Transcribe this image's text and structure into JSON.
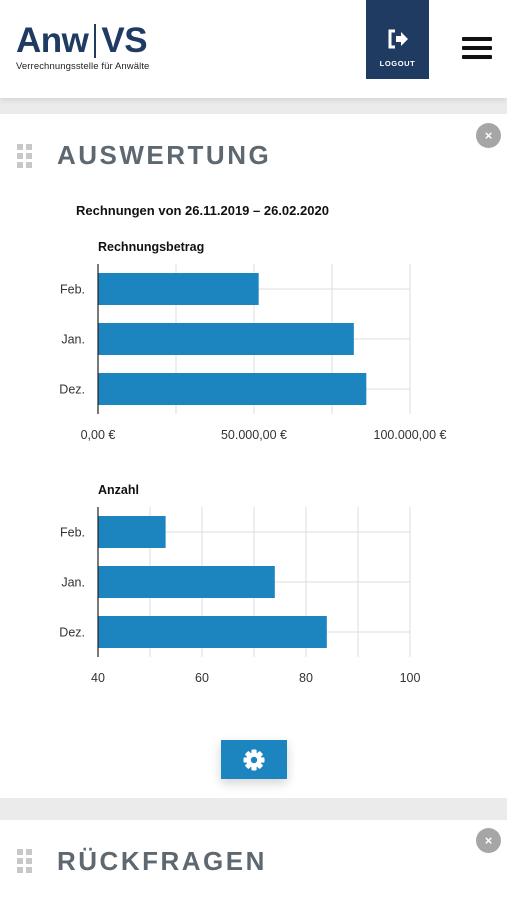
{
  "header": {
    "logo_left": "Anw",
    "logo_right": "VS",
    "logo_subtitle": "Verrechnungsstelle für Anwälte",
    "logout_label": "LOGOUT",
    "menu_icon": "hamburger-icon",
    "logout_icon": "sign-out-icon"
  },
  "cards": [
    {
      "title": "AUSWERTUNG",
      "close": "×"
    },
    {
      "title": "RÜCKFRAGEN",
      "close": "×"
    }
  ],
  "evaluation": {
    "range_title": "Rechnungen von 26.11.2019 – 26.02.2020",
    "settings_icon": "gear-icon"
  },
  "colors": {
    "bar": "#1c84bf",
    "brand": "#1f3b62",
    "grid": "#dddddd"
  },
  "chart_data": [
    {
      "type": "bar",
      "orientation": "horizontal",
      "title": "Rechnungsbetrag",
      "categories": [
        "Feb.",
        "Jan.",
        "Dez."
      ],
      "values": [
        51500,
        82000,
        86000
      ],
      "xlim": [
        0,
        100000
      ],
      "ticks": [
        0,
        50000,
        100000
      ],
      "tick_labels": [
        "0,00 €",
        "50.000,00 €",
        "100.000,00 €"
      ],
      "grid": true
    },
    {
      "type": "bar",
      "orientation": "horizontal",
      "title": "Anzahl",
      "categories": [
        "Feb.",
        "Jan.",
        "Dez."
      ],
      "values": [
        53,
        74,
        84
      ],
      "xlim": [
        40,
        100
      ],
      "ticks": [
        40,
        60,
        80,
        100
      ],
      "tick_labels": [
        "40",
        "60",
        "80",
        "100"
      ],
      "grid": true
    }
  ]
}
